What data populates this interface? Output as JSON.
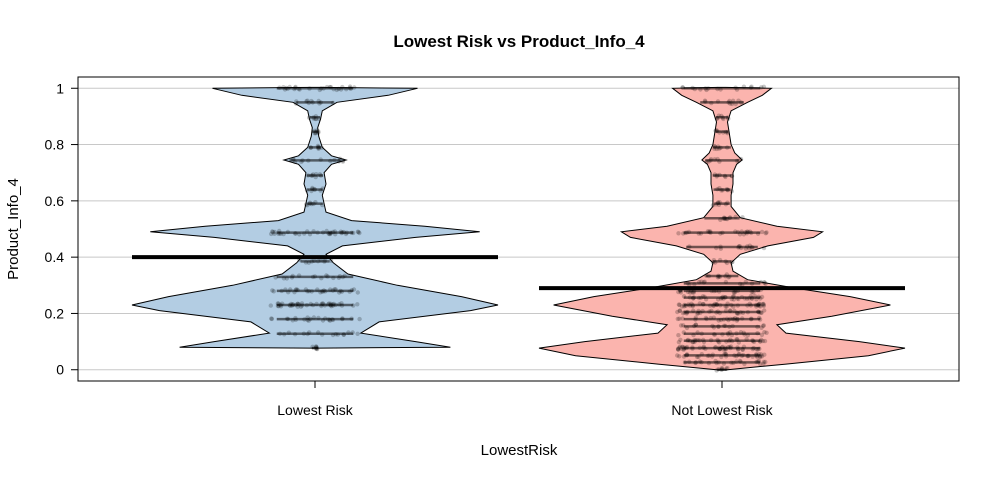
{
  "chart_data": {
    "type": "violin",
    "title": "Lowest Risk vs Product_Info_4",
    "xlabel": "LowestRisk",
    "ylabel": "Product_Info_4",
    "ylim": [
      -0.04,
      1.04
    ],
    "yticks": [
      0,
      0.2,
      0.4,
      0.6,
      0.8,
      1
    ],
    "ytick_labels": [
      "0",
      "0.2",
      "0.4",
      "0.6",
      "0.8",
      "1"
    ],
    "grid": true,
    "categories": [
      "Lowest Risk",
      "Not Lowest Risk"
    ],
    "series": [
      {
        "name": "Lowest Risk",
        "color": "#b3cde3",
        "mean": 0.4,
        "density": [
          {
            "y": 0.077,
            "w": 0.02
          },
          {
            "y": 0.08,
            "w": 0.74
          },
          {
            "y": 0.1,
            "w": 0.55
          },
          {
            "y": 0.13,
            "w": 0.25
          },
          {
            "y": 0.17,
            "w": 0.35
          },
          {
            "y": 0.21,
            "w": 0.85
          },
          {
            "y": 0.23,
            "w": 1.0
          },
          {
            "y": 0.26,
            "w": 0.8
          },
          {
            "y": 0.3,
            "w": 0.45
          },
          {
            "y": 0.34,
            "w": 0.18
          },
          {
            "y": 0.38,
            "w": 0.1
          },
          {
            "y": 0.41,
            "w": 0.06
          },
          {
            "y": 0.44,
            "w": 0.15
          },
          {
            "y": 0.47,
            "w": 0.55
          },
          {
            "y": 0.49,
            "w": 0.9
          },
          {
            "y": 0.51,
            "w": 0.6
          },
          {
            "y": 0.53,
            "w": 0.2
          },
          {
            "y": 0.56,
            "w": 0.06
          },
          {
            "y": 0.59,
            "w": 0.05
          },
          {
            "y": 0.62,
            "w": 0.04
          },
          {
            "y": 0.66,
            "w": 0.06
          },
          {
            "y": 0.7,
            "w": 0.05
          },
          {
            "y": 0.73,
            "w": 0.09
          },
          {
            "y": 0.745,
            "w": 0.17
          },
          {
            "y": 0.76,
            "w": 0.09
          },
          {
            "y": 0.79,
            "w": 0.04
          },
          {
            "y": 0.83,
            "w": 0.02
          },
          {
            "y": 0.86,
            "w": 0.015
          },
          {
            "y": 0.89,
            "w": 0.03
          },
          {
            "y": 0.92,
            "w": 0.04
          },
          {
            "y": 0.95,
            "w": 0.12
          },
          {
            "y": 0.975,
            "w": 0.4
          },
          {
            "y": 1.0,
            "w": 0.56
          },
          {
            "y": 1.003,
            "w": 0.02
          }
        ],
        "jitter_levels": [
          0.077,
          0.128,
          0.18,
          0.23,
          0.28,
          0.33,
          0.385,
          0.487,
          0.59,
          0.64,
          0.69,
          0.744,
          0.79,
          0.846,
          0.897,
          0.95,
          1.0
        ]
      },
      {
        "name": "Not Lowest Risk",
        "color": "#fbb4ae",
        "mean": 0.29,
        "density": [
          {
            "y": 0.0,
            "w": 0.03
          },
          {
            "y": 0.02,
            "w": 0.35
          },
          {
            "y": 0.05,
            "w": 0.8
          },
          {
            "y": 0.077,
            "w": 1.0
          },
          {
            "y": 0.1,
            "w": 0.75
          },
          {
            "y": 0.13,
            "w": 0.35
          },
          {
            "y": 0.16,
            "w": 0.3
          },
          {
            "y": 0.19,
            "w": 0.6
          },
          {
            "y": 0.23,
            "w": 0.92
          },
          {
            "y": 0.26,
            "w": 0.7
          },
          {
            "y": 0.29,
            "w": 0.4
          },
          {
            "y": 0.32,
            "w": 0.14
          },
          {
            "y": 0.35,
            "w": 0.06
          },
          {
            "y": 0.38,
            "w": 0.05
          },
          {
            "y": 0.41,
            "w": 0.1
          },
          {
            "y": 0.44,
            "w": 0.25
          },
          {
            "y": 0.47,
            "w": 0.5
          },
          {
            "y": 0.49,
            "w": 0.55
          },
          {
            "y": 0.51,
            "w": 0.3
          },
          {
            "y": 0.54,
            "w": 0.1
          },
          {
            "y": 0.58,
            "w": 0.05
          },
          {
            "y": 0.62,
            "w": 0.05
          },
          {
            "y": 0.66,
            "w": 0.06
          },
          {
            "y": 0.7,
            "w": 0.06
          },
          {
            "y": 0.73,
            "w": 0.08
          },
          {
            "y": 0.745,
            "w": 0.11
          },
          {
            "y": 0.77,
            "w": 0.07
          },
          {
            "y": 0.8,
            "w": 0.05
          },
          {
            "y": 0.84,
            "w": 0.04
          },
          {
            "y": 0.88,
            "w": 0.03
          },
          {
            "y": 0.92,
            "w": 0.05
          },
          {
            "y": 0.95,
            "w": 0.14
          },
          {
            "y": 0.975,
            "w": 0.22
          },
          {
            "y": 1.0,
            "w": 0.27
          },
          {
            "y": 1.003,
            "w": 0.02
          }
        ],
        "jitter_levels": [
          0.0,
          0.026,
          0.051,
          0.077,
          0.103,
          0.128,
          0.154,
          0.18,
          0.205,
          0.23,
          0.256,
          0.28,
          0.307,
          0.333,
          0.385,
          0.436,
          0.487,
          0.538,
          0.59,
          0.64,
          0.69,
          0.744,
          0.79,
          0.846,
          0.897,
          0.95,
          1.0
        ]
      }
    ]
  }
}
